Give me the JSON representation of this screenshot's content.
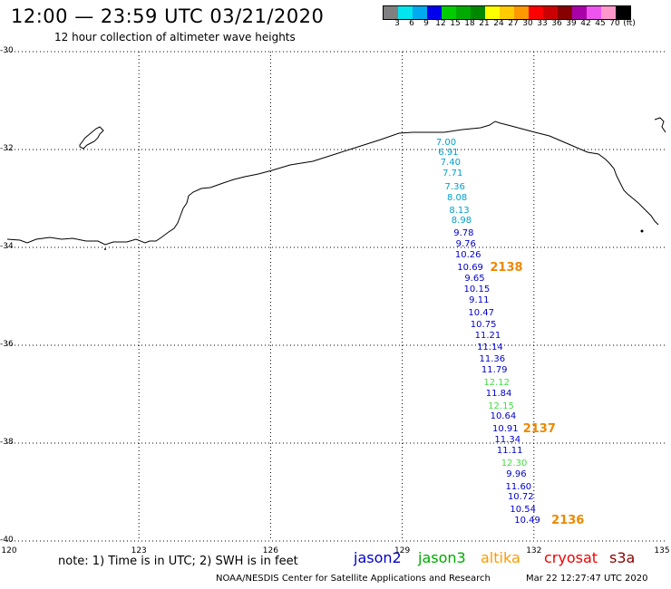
{
  "header": {
    "title": "12:00 — 23:59 UTC 03/21/2020",
    "subtitle": "12 hour collection of altimeter wave heights"
  },
  "scale": {
    "colors": [
      "#808080",
      "#00e5ee",
      "#00aaee",
      "#0000ee",
      "#00cc00",
      "#00aa00",
      "#008800",
      "#ffff00",
      "#ffcc00",
      "#ff9900",
      "#ff0000",
      "#cc0000",
      "#880000",
      "#aa00aa",
      "#ee55ee",
      "#ff99cc",
      "#000000"
    ],
    "labels": [
      "3",
      "6",
      "9",
      "12",
      "15",
      "18",
      "21",
      "24",
      "27",
      "30",
      "33",
      "36",
      "39",
      "42",
      "45",
      "70",
      "(ft)"
    ]
  },
  "axes": {
    "lat_labels": [
      "-30",
      "-32",
      "-34",
      "-36",
      "-38",
      "-40"
    ],
    "lon_labels": [
      "120",
      "123",
      "126",
      "129",
      "132",
      "135"
    ]
  },
  "observations": [
    {
      "text": "7.00",
      "color": "#00a0cc",
      "lon": 130.0,
      "lat": -31.87
    },
    {
      "text": "6.91",
      "color": "#00a0cc",
      "lon": 130.05,
      "lat": -32.07
    },
    {
      "text": "7.40",
      "color": "#00a0cc",
      "lon": 130.1,
      "lat": -32.27
    },
    {
      "text": "7.71",
      "color": "#00a0cc",
      "lon": 130.15,
      "lat": -32.5
    },
    {
      "text": "7.36",
      "color": "#00a0cc",
      "lon": 130.2,
      "lat": -32.77
    },
    {
      "text": "8.08",
      "color": "#00a0cc",
      "lon": 130.25,
      "lat": -33.0
    },
    {
      "text": "8.13",
      "color": "#00a0cc",
      "lon": 130.3,
      "lat": -33.25
    },
    {
      "text": "8.98",
      "color": "#00a0cc",
      "lon": 130.35,
      "lat": -33.47
    },
    {
      "text": "9.78",
      "color": "#0000cc",
      "lon": 130.4,
      "lat": -33.72
    },
    {
      "text": "9.76",
      "color": "#0000cc",
      "lon": 130.45,
      "lat": -33.95
    },
    {
      "text": "10.26",
      "color": "#0000cc",
      "lon": 130.5,
      "lat": -34.17
    },
    {
      "text": "10.69",
      "color": "#0000cc",
      "lon": 130.55,
      "lat": -34.42
    },
    {
      "text": "9.65",
      "color": "#0000cc",
      "lon": 130.65,
      "lat": -34.65
    },
    {
      "text": "10.15",
      "color": "#0000cc",
      "lon": 130.7,
      "lat": -34.87
    },
    {
      "text": "9.11",
      "color": "#0000cc",
      "lon": 130.75,
      "lat": -35.1
    },
    {
      "text": "10.47",
      "color": "#0000cc",
      "lon": 130.8,
      "lat": -35.35
    },
    {
      "text": "10.75",
      "color": "#0000cc",
      "lon": 130.85,
      "lat": -35.6
    },
    {
      "text": "11.21",
      "color": "#0000cc",
      "lon": 130.95,
      "lat": -35.82
    },
    {
      "text": "11.14",
      "color": "#0000cc",
      "lon": 131.0,
      "lat": -36.05
    },
    {
      "text": "11.36",
      "color": "#0000cc",
      "lon": 131.05,
      "lat": -36.3
    },
    {
      "text": "11.79",
      "color": "#0000cc",
      "lon": 131.1,
      "lat": -36.52
    },
    {
      "text": "12.12",
      "color": "#44dd44",
      "lon": 131.15,
      "lat": -36.77
    },
    {
      "text": "11.84",
      "color": "#0000cc",
      "lon": 131.2,
      "lat": -37.0
    },
    {
      "text": "12.15",
      "color": "#44dd44",
      "lon": 131.25,
      "lat": -37.25
    },
    {
      "text": "10.64",
      "color": "#0000cc",
      "lon": 131.3,
      "lat": -37.47
    },
    {
      "text": "10.91",
      "color": "#0000cc",
      "lon": 131.35,
      "lat": -37.72
    },
    {
      "text": "11.34",
      "color": "#0000cc",
      "lon": 131.4,
      "lat": -37.95
    },
    {
      "text": "11.11",
      "color": "#0000cc",
      "lon": 131.45,
      "lat": -38.17
    },
    {
      "text": "12.30",
      "color": "#44dd44",
      "lon": 131.55,
      "lat": -38.42
    },
    {
      "text": "9.96",
      "color": "#0000cc",
      "lon": 131.6,
      "lat": -38.65
    },
    {
      "text": "11.60",
      "color": "#0000cc",
      "lon": 131.65,
      "lat": -38.9
    },
    {
      "text": "10.72",
      "color": "#0000cc",
      "lon": 131.7,
      "lat": -39.12
    },
    {
      "text": "10.54",
      "color": "#0000cc",
      "lon": 131.75,
      "lat": -39.37
    },
    {
      "text": "10.49",
      "color": "#0000cc",
      "lon": 131.85,
      "lat": -39.6
    }
  ],
  "times": [
    {
      "text": "2138",
      "color": "#ee8800",
      "lon": 131.0,
      "lat": -34.42
    },
    {
      "text": "2137",
      "color": "#ee8800",
      "lon": 131.75,
      "lat": -37.72
    },
    {
      "text": "2136",
      "color": "#ee8800",
      "lon": 132.4,
      "lat": -39.6
    }
  ],
  "note": "note: 1) Time is in UTC; 2) SWH is in feet",
  "legend": [
    {
      "name": "jason2",
      "color": "#0000cc"
    },
    {
      "name": "jason3",
      "color": "#00aa00"
    },
    {
      "name": "altika",
      "color": "#ff9900"
    },
    {
      "name": "cryosat",
      "color": "#ee0000"
    },
    {
      "name": "s3a",
      "color": "#880000"
    }
  ],
  "footer": {
    "credit": "NOAA/NESDIS Center for Satellite Applications and Research",
    "timestamp": "Mar 22 12:27:47 UTC 2020"
  }
}
